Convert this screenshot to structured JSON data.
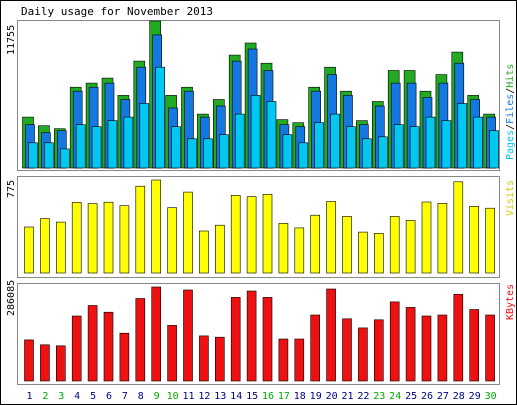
{
  "chart_data": {
    "type": "bar",
    "title": "Daily usage for November 2013",
    "days": [
      "1",
      "2",
      "3",
      "4",
      "5",
      "6",
      "7",
      "8",
      "9",
      "10",
      "11",
      "12",
      "13",
      "14",
      "15",
      "16",
      "17",
      "18",
      "19",
      "20",
      "21",
      "22",
      "23",
      "24",
      "25",
      "26",
      "27",
      "28",
      "29",
      "30"
    ],
    "weekend_days": [
      "2",
      "3",
      "9",
      "10",
      "16",
      "17",
      "23",
      "24",
      "30"
    ],
    "panels": [
      {
        "label": "Pages/Files/Hits",
        "max_label": "11755",
        "ylim": [
          0,
          11755
        ],
        "series": [
          {
            "name": "Hits",
            "color": "#22aa22",
            "values": [
              4069,
              3384,
              3143,
              6464,
              6786,
              7189,
              5803,
              8545,
              11755,
              5803,
              6464,
              4311,
              5480,
              9029,
              9996,
              8384,
              3869,
              3626,
              6464,
              8062,
              6142,
              3789,
              5319,
              7794,
              7794,
              6142,
              7468,
              9271,
              5803,
              4311
            ]
          },
          {
            "name": "Files",
            "color": "#1478e0",
            "values": [
              3465,
              2821,
              2981,
              6142,
              6464,
              6786,
              5480,
              8062,
              10642,
              4797,
              6142,
              4069,
              4957,
              8545,
              9513,
              7794,
              3465,
              3304,
              6142,
              7468,
              5803,
              3465,
              4957,
              6786,
              6786,
              5640,
              6786,
              8384,
              5480,
              4069
            ]
          },
          {
            "name": "Pages",
            "color": "#00c8f0",
            "values": [
              2015,
              2015,
              1530,
              3465,
              3304,
              3787,
              4069,
              5159,
              8062,
              3304,
              2337,
              2337,
              2659,
              4311,
              5803,
              5319,
              2659,
              2015,
              3626,
              4311,
              3304,
              2337,
              2497,
              3465,
              3304,
              4069,
              3787,
              5159,
              4069,
              2981
            ]
          }
        ]
      },
      {
        "label": "Visits",
        "max_label": "775",
        "ylim": [
          0,
          775
        ],
        "series": [
          {
            "name": "Visits",
            "color": "#ffff00",
            "values": [
              383,
              453,
              424,
              589,
              578,
              590,
              561,
              723,
              775,
              544,
              674,
              350,
              398,
              647,
              636,
              656,
              413,
              376,
              482,
              596,
              472,
              341,
              330,
              472,
              438,
              592,
              580,
              760,
              556,
              540
            ]
          }
        ]
      },
      {
        "label": "KBytes",
        "max_label": "286085",
        "ylim": [
          0,
          286085
        ],
        "series": [
          {
            "name": "KBytes",
            "color": "#ee1111",
            "values": [
              125150,
              110140,
              107130,
              197770,
              229780,
              209460,
              145580,
              251150,
              286085,
              169120,
              276820,
              137300,
              133400,
              254410,
              273940,
              254410,
              127810,
              127810,
              201010,
              280100,
              189290,
              161520,
              186300,
              240700,
              224110,
              197770,
              201010,
              263750,
              217600,
              201010
            ]
          }
        ]
      }
    ]
  },
  "colors": {
    "weekday_label": "#000080",
    "weekend_label": "#00aa00",
    "background": "#ffffff",
    "frame": "#000000",
    "hits": "#22aa22",
    "files": "#1478e0",
    "pages": "#00c8f0",
    "visits": "#ffff00",
    "kbytes": "#ee1111"
  }
}
